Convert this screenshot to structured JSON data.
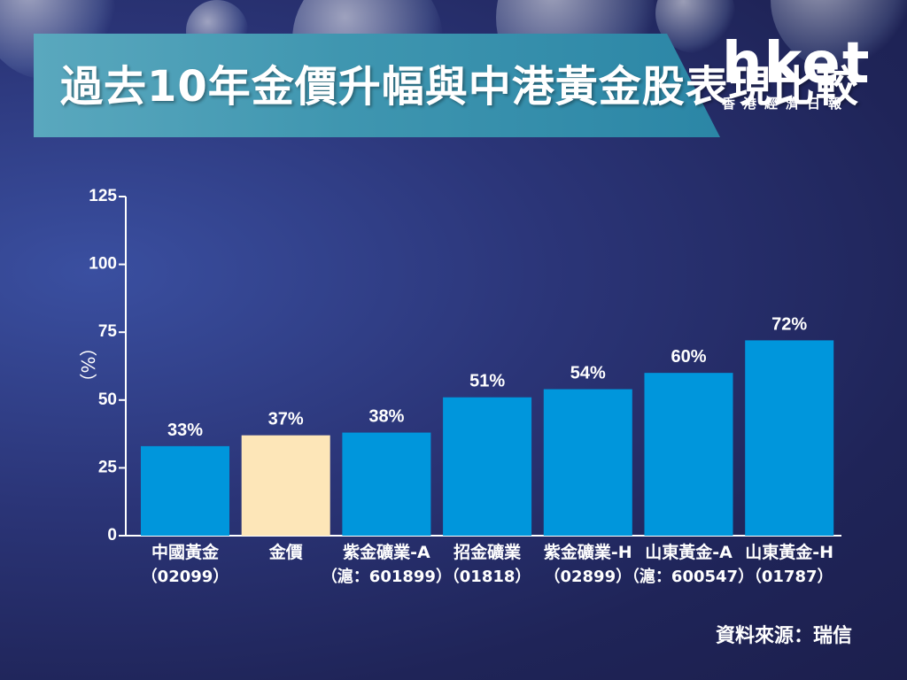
{
  "title": "過去10年金價升幅與中港黃金股表現比較",
  "logo": {
    "main": "hket",
    "sub": "香港經濟日報"
  },
  "source": "資料來源：瑞信",
  "chart_data": {
    "type": "bar",
    "ylabel": "（%）",
    "ylim": [
      0,
      125
    ],
    "yticks": [
      0,
      25,
      50,
      75,
      100,
      125
    ],
    "grid": false,
    "categories": [
      {
        "line1": "中國黃金",
        "line2": "（02099）"
      },
      {
        "line1": "金價",
        "line2": ""
      },
      {
        "line1": "紫金礦業-A",
        "line2": "（滬：601899）"
      },
      {
        "line1": "招金礦業",
        "line2": "（01818）"
      },
      {
        "line1": "紫金礦業-H",
        "line2": "（02899）"
      },
      {
        "line1": "山東黃金-A",
        "line2": "（滬：600547）"
      },
      {
        "line1": "山東黃金-H",
        "line2": "（01787）"
      }
    ],
    "values": [
      33,
      37,
      38,
      51,
      54,
      60,
      72
    ],
    "value_labels": [
      "33%",
      "37%",
      "38%",
      "51%",
      "54%",
      "60%",
      "72%"
    ],
    "colors": [
      "#0096dc",
      "#fde6b8",
      "#0096dc",
      "#0096dc",
      "#0096dc",
      "#0096dc",
      "#0096dc"
    ]
  }
}
